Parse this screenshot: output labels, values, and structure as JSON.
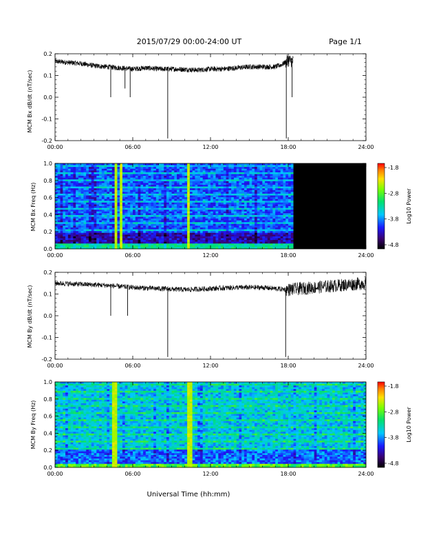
{
  "header": {
    "title": "2015/07/29  00:00-24:00 UT",
    "page": "Page 1/1"
  },
  "xaxis_label": "Universal Time (hh:mm)",
  "colors": {
    "trace": "#000000",
    "nodata": "#000000",
    "background": "#ffffff"
  },
  "chart_data": [
    {
      "type": "line",
      "ylabel": "MCM Bx dB/dt (nT/sec)",
      "xlim": [
        0,
        24
      ],
      "ylim": [
        -0.2,
        0.2
      ],
      "xticks": [
        "00:00",
        "06:00",
        "12:00",
        "18:00",
        "24:00"
      ],
      "yticks": [
        "0.2",
        "0.1",
        "0.0",
        "-0.1",
        "-0.2"
      ],
      "data_end_hour": 18.4,
      "series": [
        {
          "x": [
            0,
            1,
            2,
            3,
            4,
            5,
            6,
            7,
            8,
            9,
            10,
            11,
            12,
            13,
            14,
            15,
            16,
            17,
            17.5,
            18,
            18.4
          ],
          "values": [
            0.165,
            0.16,
            0.155,
            0.145,
            0.14,
            0.135,
            0.13,
            0.135,
            0.13,
            0.13,
            0.128,
            0.125,
            0.13,
            0.13,
            0.135,
            0.14,
            0.14,
            0.14,
            0.15,
            0.17,
            0.165
          ]
        }
      ],
      "spikes": [
        [
          4.3,
          0.0
        ],
        [
          5.4,
          0.04
        ],
        [
          5.8,
          0.0
        ],
        [
          8.7,
          -0.19
        ],
        [
          17.85,
          -0.19
        ],
        [
          18.3,
          0.0
        ]
      ]
    },
    {
      "type": "heatmap",
      "ylabel": "MCM Bx Freq (Hz)",
      "xlim": [
        0,
        24
      ],
      "ylim": [
        0,
        1
      ],
      "xticks": [
        "00:00",
        "06:00",
        "12:00",
        "18:00",
        "24:00"
      ],
      "yticks": [
        "1.0",
        "0.8",
        "0.6",
        "0.4",
        "0.2",
        "0.0"
      ],
      "data_end_hour": 18.4,
      "colorbar": {
        "label": "Log10 Power",
        "ticks": [
          "-1.8",
          "-2.8",
          "-3.8",
          "-4.8"
        ]
      },
      "bright_lines_hours": [
        4.7,
        5.1,
        10.3
      ]
    },
    {
      "type": "line",
      "ylabel": "MCM By dB/dt (nT/sec)",
      "xlim": [
        0,
        24
      ],
      "ylim": [
        -0.2,
        0.2
      ],
      "xticks": [
        "00:00",
        "06:00",
        "12:00",
        "18:00",
        "24:00"
      ],
      "yticks": [
        "0.2",
        "0.1",
        "0.0",
        "-0.1",
        "-0.2"
      ],
      "data_end_hour": 24,
      "series": [
        {
          "x": [
            0,
            2,
            4,
            6,
            8,
            10,
            12,
            14,
            16,
            18,
            20,
            22,
            24
          ],
          "values": [
            0.15,
            0.145,
            0.14,
            0.13,
            0.125,
            0.12,
            0.125,
            0.13,
            0.13,
            0.12,
            0.13,
            0.14,
            0.15
          ]
        }
      ],
      "spikes": [
        [
          4.3,
          0.0
        ],
        [
          5.6,
          0.0
        ],
        [
          8.7,
          -0.19
        ],
        [
          17.8,
          -0.19
        ]
      ]
    },
    {
      "type": "heatmap",
      "ylabel": "MCM By Freq (Hz)",
      "xlim": [
        0,
        24
      ],
      "ylim": [
        0,
        1
      ],
      "xticks": [
        "00:00",
        "06:00",
        "12:00",
        "18:00",
        "24:00"
      ],
      "yticks": [
        "1.0",
        "0.8",
        "0.6",
        "0.4",
        "0.2",
        "0.0"
      ],
      "data_end_hour": 24,
      "colorbar": {
        "label": "Log10 Power",
        "ticks": [
          "-1.8",
          "-2.8",
          "-3.8",
          "-4.8"
        ]
      },
      "bright_lines_hours": [
        4.6,
        10.4
      ]
    }
  ]
}
